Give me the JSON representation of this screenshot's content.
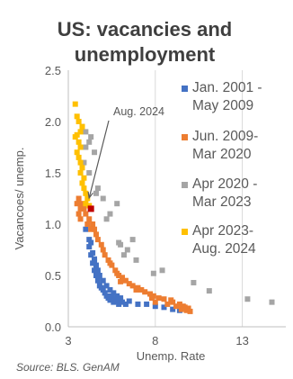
{
  "chart_data": {
    "type": "scatter",
    "title_lines": [
      "US: vacancies and",
      "unemployment"
    ],
    "xlabel": "Unemp. Rate",
    "ylabel": "Vacancoes/ unemp.",
    "xlim": [
      3,
      15.5
    ],
    "ylim": [
      0,
      2.5
    ],
    "x_ticks": [
      "3",
      "8",
      "13"
    ],
    "y_ticks": [
      "0.0",
      "0.5",
      "1.0",
      "1.5",
      "2.0",
      "2.5"
    ],
    "grid": "vertical",
    "legend_position": "right",
    "annotation": {
      "text": "Aug. 2024",
      "x": 4.3,
      "y": 1.15
    },
    "source": "Source: BLS. GenAM",
    "series": [
      {
        "name_lines": [
          "Jan. 2001 -",
          "May 2009"
        ],
        "color": "#4472c4",
        "points": [
          [
            4.0,
            0.95
          ],
          [
            4.2,
            0.78
          ],
          [
            4.3,
            0.7
          ],
          [
            4.4,
            0.62
          ],
          [
            4.5,
            0.55
          ],
          [
            4.6,
            0.5
          ],
          [
            4.7,
            0.45
          ],
          [
            4.8,
            0.4
          ],
          [
            4.9,
            0.38
          ],
          [
            5.0,
            0.36
          ],
          [
            5.1,
            0.33
          ],
          [
            5.2,
            0.3
          ],
          [
            5.3,
            0.28
          ],
          [
            5.4,
            0.26
          ],
          [
            5.5,
            0.3
          ],
          [
            5.6,
            0.24
          ],
          [
            5.7,
            0.27
          ],
          [
            5.8,
            0.25
          ],
          [
            5.9,
            0.22
          ],
          [
            6.0,
            0.26
          ],
          [
            6.1,
            0.24
          ],
          [
            6.3,
            0.22
          ],
          [
            4.4,
            0.72
          ],
          [
            4.5,
            0.66
          ],
          [
            4.6,
            0.6
          ],
          [
            4.7,
            0.55
          ],
          [
            4.6,
            0.58
          ],
          [
            4.5,
            0.64
          ],
          [
            4.8,
            0.5
          ],
          [
            5.0,
            0.45
          ],
          [
            5.2,
            0.4
          ],
          [
            5.4,
            0.36
          ],
          [
            5.6,
            0.33
          ],
          [
            5.8,
            0.3
          ],
          [
            6.0,
            0.28
          ],
          [
            6.5,
            0.25
          ],
          [
            7.0,
            0.22
          ],
          [
            7.5,
            0.22
          ],
          [
            8.0,
            0.2
          ],
          [
            8.5,
            0.19
          ],
          [
            9.0,
            0.17
          ],
          [
            9.4,
            0.16
          ],
          [
            4.2,
            0.85
          ],
          [
            4.3,
            0.82
          ]
        ]
      },
      {
        "name_lines": [
          "Jun. 2009-",
          "Mar 2020"
        ],
        "color": "#ed7d31",
        "points": [
          [
            9.5,
            0.17
          ],
          [
            9.8,
            0.16
          ],
          [
            10.0,
            0.15
          ],
          [
            9.9,
            0.18
          ],
          [
            9.6,
            0.2
          ],
          [
            9.4,
            0.22
          ],
          [
            9.0,
            0.24
          ],
          [
            8.9,
            0.26
          ],
          [
            8.5,
            0.27
          ],
          [
            8.2,
            0.28
          ],
          [
            7.9,
            0.3
          ],
          [
            7.7,
            0.32
          ],
          [
            7.4,
            0.34
          ],
          [
            7.2,
            0.36
          ],
          [
            7.0,
            0.38
          ],
          [
            6.7,
            0.4
          ],
          [
            6.5,
            0.42
          ],
          [
            6.3,
            0.45
          ],
          [
            6.1,
            0.48
          ],
          [
            5.9,
            0.5
          ],
          [
            5.7,
            0.55
          ],
          [
            5.5,
            0.6
          ],
          [
            5.3,
            0.65
          ],
          [
            5.1,
            0.7
          ],
          [
            5.0,
            0.75
          ],
          [
            4.9,
            0.8
          ],
          [
            4.7,
            0.85
          ],
          [
            4.5,
            0.95
          ],
          [
            4.4,
            1.0
          ],
          [
            4.2,
            1.05
          ],
          [
            4.0,
            1.1
          ],
          [
            3.9,
            1.15
          ],
          [
            3.8,
            1.2
          ],
          [
            3.7,
            1.15
          ],
          [
            3.6,
            1.25
          ],
          [
            3.7,
            1.05
          ],
          [
            3.5,
            1.2
          ],
          [
            3.6,
            1.1
          ],
          [
            4.1,
            1.0
          ],
          [
            4.3,
            0.95
          ],
          [
            4.6,
            0.9
          ],
          [
            8.0,
            0.24
          ],
          [
            7.8,
            0.28
          ],
          [
            6.9,
            0.36
          ],
          [
            6.0,
            0.44
          ],
          [
            9.2,
            0.2
          ],
          [
            9.7,
            0.19
          ],
          [
            8.7,
            0.22
          ],
          [
            5.4,
            0.62
          ],
          [
            5.8,
            0.52
          ]
        ]
      },
      {
        "name_lines": [
          "Apr 2020 -",
          "Mar 2023"
        ],
        "color": "#a5a5a5",
        "points": [
          [
            14.7,
            0.24
          ],
          [
            13.3,
            0.27
          ],
          [
            11.1,
            0.35
          ],
          [
            10.2,
            0.43
          ],
          [
            8.4,
            0.55
          ],
          [
            7.9,
            0.52
          ],
          [
            6.9,
            0.65
          ],
          [
            6.7,
            0.85
          ],
          [
            6.4,
            0.75
          ],
          [
            6.2,
            0.7
          ],
          [
            6.0,
            0.8
          ],
          [
            5.9,
            0.82
          ],
          [
            5.4,
            1.1
          ],
          [
            5.8,
            1.2
          ],
          [
            5.2,
            1.05
          ],
          [
            5.0,
            1.25
          ],
          [
            4.7,
            1.35
          ],
          [
            4.6,
            1.3
          ],
          [
            4.2,
            1.5
          ],
          [
            3.9,
            1.6
          ],
          [
            4.0,
            1.75
          ],
          [
            4.2,
            1.8
          ],
          [
            4.5,
            1.7
          ],
          [
            3.8,
            1.95
          ],
          [
            4.0,
            1.9
          ],
          [
            4.3,
            1.85
          ]
        ]
      },
      {
        "name_lines": [
          "Apr 2023-",
          "Aug. 2024"
        ],
        "color": "#ffc000",
        "points": [
          [
            3.4,
            2.17
          ],
          [
            3.5,
            2.05
          ],
          [
            3.6,
            2.0
          ],
          [
            3.8,
            1.95
          ],
          [
            3.7,
            1.9
          ],
          [
            3.5,
            1.87
          ],
          [
            3.4,
            1.85
          ],
          [
            3.6,
            1.8
          ],
          [
            3.7,
            1.75
          ],
          [
            3.5,
            1.7
          ],
          [
            3.6,
            1.65
          ],
          [
            3.7,
            1.6
          ],
          [
            3.8,
            1.55
          ],
          [
            3.7,
            1.5
          ],
          [
            3.9,
            1.45
          ],
          [
            3.8,
            1.4
          ],
          [
            3.9,
            1.35
          ],
          [
            4.0,
            1.3
          ],
          [
            4.1,
            1.25
          ],
          [
            4.0,
            1.2
          ],
          [
            4.2,
            1.18
          ]
        ]
      },
      {
        "name_lines": [],
        "color": "#c00000",
        "points": [
          [
            4.3,
            1.15
          ]
        ]
      }
    ]
  }
}
